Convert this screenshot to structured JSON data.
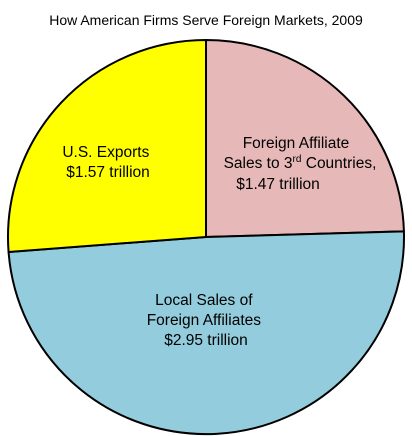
{
  "chart_data": {
    "type": "pie",
    "title": "How American Firms Serve Foreign Markets, 2009",
    "unit": "trillion",
    "slices": [
      {
        "name": "U.S. Exports",
        "value": 1.57,
        "value_label": "$1.57 trillion",
        "color": "#ffff00"
      },
      {
        "name": "Foreign Affiliate Sales to 3rd Countries",
        "name_line1": "Foreign Affiliate",
        "name_line2_pre": "Sales to 3",
        "name_line2_sup": "rd",
        "name_line2_post": " Countries,",
        "value": 1.47,
        "value_label": "$1.47 trillion",
        "color": "#e6b9b8"
      },
      {
        "name": "Local Sales of Foreign Affiliates",
        "name_line1": "Local Sales of",
        "name_line2": "Foreign Affiliates",
        "value": 2.95,
        "value_label": "$2.95 trillion",
        "color": "#93cddd"
      }
    ],
    "stroke_color": "#000000"
  }
}
